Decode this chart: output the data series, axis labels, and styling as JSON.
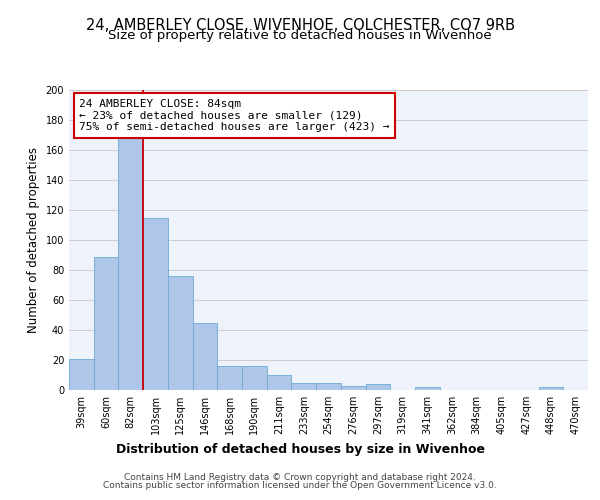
{
  "title": "24, AMBERLEY CLOSE, WIVENHOE, COLCHESTER, CO7 9RB",
  "subtitle": "Size of property relative to detached houses in Wivenhoe",
  "xlabel": "Distribution of detached houses by size in Wivenhoe",
  "ylabel": "Number of detached properties",
  "categories": [
    "39sqm",
    "60sqm",
    "82sqm",
    "103sqm",
    "125sqm",
    "146sqm",
    "168sqm",
    "190sqm",
    "211sqm",
    "233sqm",
    "254sqm",
    "276sqm",
    "297sqm",
    "319sqm",
    "341sqm",
    "362sqm",
    "384sqm",
    "405sqm",
    "427sqm",
    "448sqm",
    "470sqm"
  ],
  "values": [
    21,
    89,
    168,
    115,
    76,
    45,
    16,
    16,
    10,
    5,
    5,
    3,
    4,
    0,
    2,
    0,
    0,
    0,
    0,
    2,
    0
  ],
  "bar_color": "#aec6e8",
  "bar_edge_color": "#6aaad4",
  "bar_edge_width": 0.6,
  "ylim": [
    0,
    200
  ],
  "yticks": [
    0,
    20,
    40,
    60,
    80,
    100,
    120,
    140,
    160,
    180,
    200
  ],
  "annotation_line1": "24 AMBERLEY CLOSE: 84sqm",
  "annotation_line2": "← 23% of detached houses are smaller (129)",
  "annotation_line3": "75% of semi-detached houses are larger (423) →",
  "annotation_box_color": "#ffffff",
  "annotation_box_edge_color": "#cc0000",
  "red_line_x": 2.5,
  "red_line_color": "#cc0000",
  "grid_color": "#cccccc",
  "background_color": "#eef2fb",
  "footer_line1": "Contains HM Land Registry data © Crown copyright and database right 2024.",
  "footer_line2": "Contains public sector information licensed under the Open Government Licence v3.0.",
  "title_fontsize": 10.5,
  "subtitle_fontsize": 9.5,
  "annotation_fontsize": 8,
  "tick_fontsize": 7,
  "ylabel_fontsize": 8.5,
  "xlabel_fontsize": 9,
  "footer_fontsize": 6.5
}
